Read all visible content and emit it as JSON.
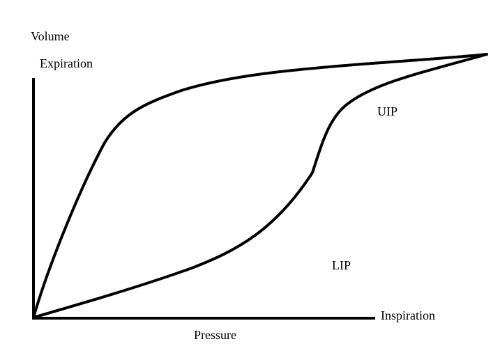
{
  "labels": {
    "volume": "Volume",
    "expiration": "Expiration",
    "uip": "UIP",
    "lip": "LIP",
    "inspiration": "Inspiration",
    "pressure": "Pressure"
  },
  "colors": {
    "background": "#ffffff",
    "stroke": "#000000"
  }
}
